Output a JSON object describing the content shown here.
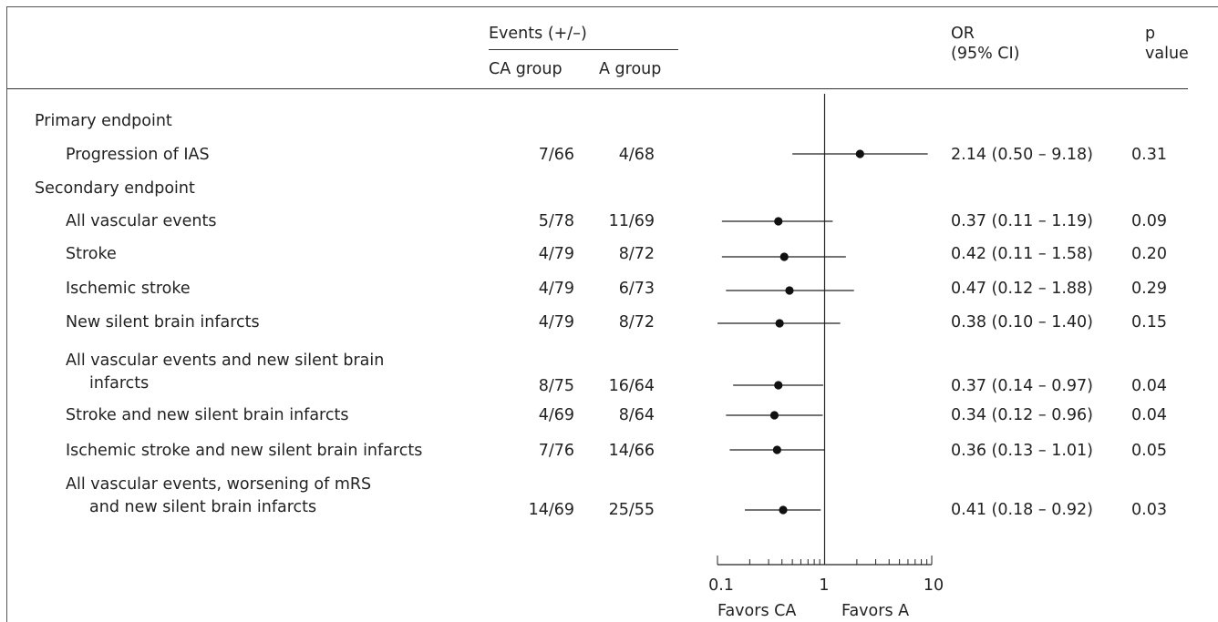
{
  "header": {
    "events_label": "Events (+/–)",
    "ca_group_label": "CA group",
    "a_group_label": "A group",
    "or_label_line1": "OR",
    "or_label_line2": "(95% CI)",
    "p_label_line1": "p",
    "p_label_line2": "value"
  },
  "sections": {
    "primary": "Primary endpoint",
    "secondary": "Secondary endpoint"
  },
  "rows": [
    {
      "label_lines": [
        "Progression of IAS"
      ],
      "ca": "7/66",
      "a": "4/68",
      "or_text": "2.14 (0.50 – 9.18)",
      "p": "0.31"
    },
    {
      "label_lines": [
        "All vascular events"
      ],
      "ca": "5/78",
      "a": "11/69",
      "or_text": "0.37 (0.11 – 1.19)",
      "p": "0.09"
    },
    {
      "label_lines": [
        "Stroke"
      ],
      "ca": "4/79",
      "a": "8/72",
      "or_text": "0.42 (0.11 – 1.58)",
      "p": "0.20"
    },
    {
      "label_lines": [
        "Ischemic stroke"
      ],
      "ca": "4/79",
      "a": "6/73",
      "or_text": "0.47 (0.12 – 1.88)",
      "p": "0.29"
    },
    {
      "label_lines": [
        "New silent brain infarcts"
      ],
      "ca": "4/79",
      "a": "8/72",
      "or_text": "0.38 (0.10 – 1.40)",
      "p": "0.15"
    },
    {
      "label_lines": [
        "All vascular events and new silent brain",
        "infarcts"
      ],
      "ca": "8/75",
      "a": "16/64",
      "or_text": "0.37 (0.14 – 0.97)",
      "p": "0.04"
    },
    {
      "label_lines": [
        "Stroke and new silent brain infarcts"
      ],
      "ca": "4/69",
      "a": "8/64",
      "or_text": "0.34 (0.12 – 0.96)",
      "p": "0.04"
    },
    {
      "label_lines": [
        "Ischemic stroke and new silent brain infarcts"
      ],
      "ca": "7/76",
      "a": "14/66",
      "or_text": "0.36 (0.13 – 1.01)",
      "p": "0.05"
    },
    {
      "label_lines": [
        "All vascular events, worsening of mRS",
        "and new silent brain infarcts"
      ],
      "ca": "14/69",
      "a": "25/55",
      "or_text": "0.41 (0.18 – 0.92)",
      "p": "0.03"
    }
  ],
  "axis": {
    "tick_labels": [
      "0.1",
      "1",
      "10"
    ],
    "favors_left": "Favors CA",
    "favors_right": "Favors A"
  },
  "chart_data": {
    "type": "scatter",
    "x_scale": "log",
    "xlim": [
      0.1,
      10
    ],
    "reference_line": 1,
    "points": [
      {
        "or": 2.14,
        "lo": 0.5,
        "hi": 9.18
      },
      {
        "or": 0.37,
        "lo": 0.11,
        "hi": 1.19
      },
      {
        "or": 0.42,
        "lo": 0.11,
        "hi": 1.58
      },
      {
        "or": 0.47,
        "lo": 0.12,
        "hi": 1.88
      },
      {
        "or": 0.38,
        "lo": 0.1,
        "hi": 1.4
      },
      {
        "or": 0.37,
        "lo": 0.14,
        "hi": 0.97
      },
      {
        "or": 0.34,
        "lo": 0.12,
        "hi": 0.96
      },
      {
        "or": 0.36,
        "lo": 0.13,
        "hi": 1.01
      },
      {
        "or": 0.41,
        "lo": 0.18,
        "hi": 0.92
      }
    ],
    "xticks": [
      0.1,
      1,
      10
    ]
  }
}
